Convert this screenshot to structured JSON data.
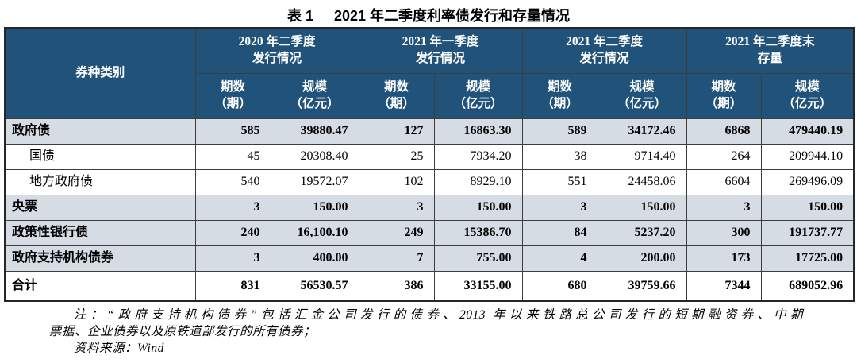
{
  "title": {
    "tag": "表 1",
    "text": "2021 年二季度利率债发行和存量情况"
  },
  "colors": {
    "header_bg": "#20527A",
    "shaded_row_bg": "#D6DCE4",
    "border": "#3d3d3d",
    "header_text": "#ffffff"
  },
  "table": {
    "corner_header": "券种类别",
    "col_groups": [
      {
        "line1": "2020 年二季度",
        "line2": "发行情况"
      },
      {
        "line1": "2021 年一季度",
        "line2": "发行情况"
      },
      {
        "line1": "2021 年二季度",
        "line2": "发行情况"
      },
      {
        "line1": "2021 年二季度末",
        "line2": "存量"
      }
    ],
    "sub_headers": {
      "count_line1": "期数",
      "count_line2": "（期）",
      "scale_line1": "规模",
      "scale_line2": "（亿元）"
    },
    "rows": [
      {
        "label": "政府债",
        "bold": true,
        "shaded": true,
        "indent": false,
        "total": false,
        "values": [
          "585",
          "39880.47",
          "127",
          "16863.30",
          "589",
          "34172.46",
          "6868",
          "479440.19"
        ]
      },
      {
        "label": "国债",
        "bold": false,
        "shaded": false,
        "indent": true,
        "total": false,
        "values": [
          "45",
          "20308.40",
          "25",
          "7934.20",
          "38",
          "9714.40",
          "264",
          "209944.10"
        ]
      },
      {
        "label": "地方政府债",
        "bold": false,
        "shaded": false,
        "indent": true,
        "total": false,
        "values": [
          "540",
          "19572.07",
          "102",
          "8929.10",
          "551",
          "24458.06",
          "6604",
          "269496.09"
        ]
      },
      {
        "label": "央票",
        "bold": true,
        "shaded": true,
        "indent": false,
        "total": false,
        "values": [
          "3",
          "150.00",
          "3",
          "150.00",
          "3",
          "150.00",
          "3",
          "150.00"
        ]
      },
      {
        "label": "政策性银行债",
        "bold": true,
        "shaded": true,
        "indent": false,
        "total": false,
        "values": [
          "240",
          "16,100.10",
          "249",
          "15386.70",
          "84",
          "5237.20",
          "300",
          "191737.77"
        ]
      },
      {
        "label": "政府支持机构债券",
        "bold": true,
        "shaded": true,
        "indent": false,
        "total": false,
        "values": [
          "3",
          "400.00",
          "7",
          "755.00",
          "4",
          "200.00",
          "173",
          "17725.00"
        ]
      },
      {
        "label": "合计",
        "bold": true,
        "shaded": false,
        "indent": false,
        "total": true,
        "values": [
          "831",
          "56530.57",
          "386",
          "33155.00",
          "680",
          "39759.66",
          "7344",
          "689052.96"
        ]
      }
    ]
  },
  "notes": {
    "line1": "注：“政府支持机构债券”包括汇金公司发行的债券、2013 年以来铁路总公司发行的短期融资券、中期",
    "line2": "票据、企业债券以及原铁道部发行的所有债券；",
    "line3": "资料来源：Wind"
  }
}
